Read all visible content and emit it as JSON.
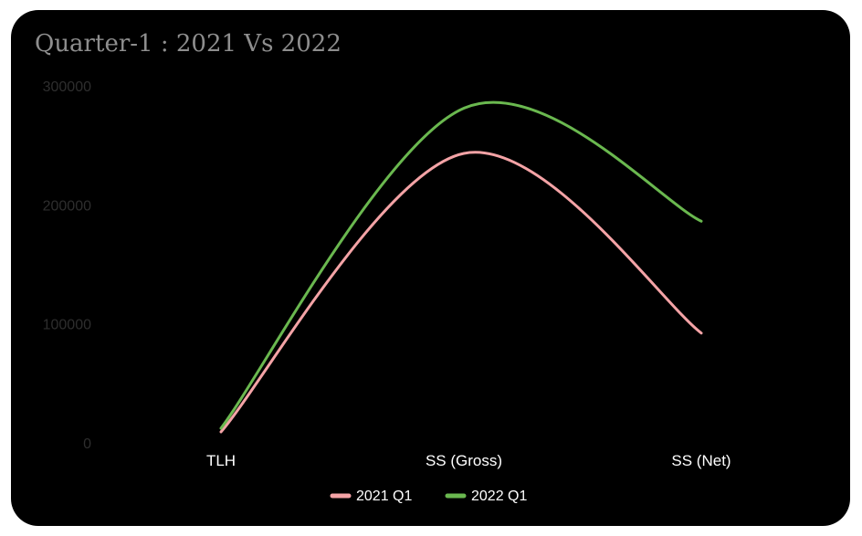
{
  "chart_data": {
    "type": "line",
    "title": "Quarter-1 : 2021 Vs 2022",
    "xlabel": "",
    "ylabel": "",
    "categories": [
      "TLH",
      "SS (Gross)",
      "SS (Net)"
    ],
    "y_ticks": [
      "0",
      "100000",
      "200000",
      "300000"
    ],
    "ylim": [
      0,
      300000
    ],
    "grid": false,
    "smooth": true,
    "legend_position": "bottom",
    "series": [
      {
        "name": "2021 Q1",
        "color": "#f4a3a6",
        "values": [
          10000,
          244000,
          93000
        ]
      },
      {
        "name": "2022 Q1",
        "color": "#6ab84f",
        "values": [
          13000,
          282000,
          187000
        ]
      }
    ]
  }
}
